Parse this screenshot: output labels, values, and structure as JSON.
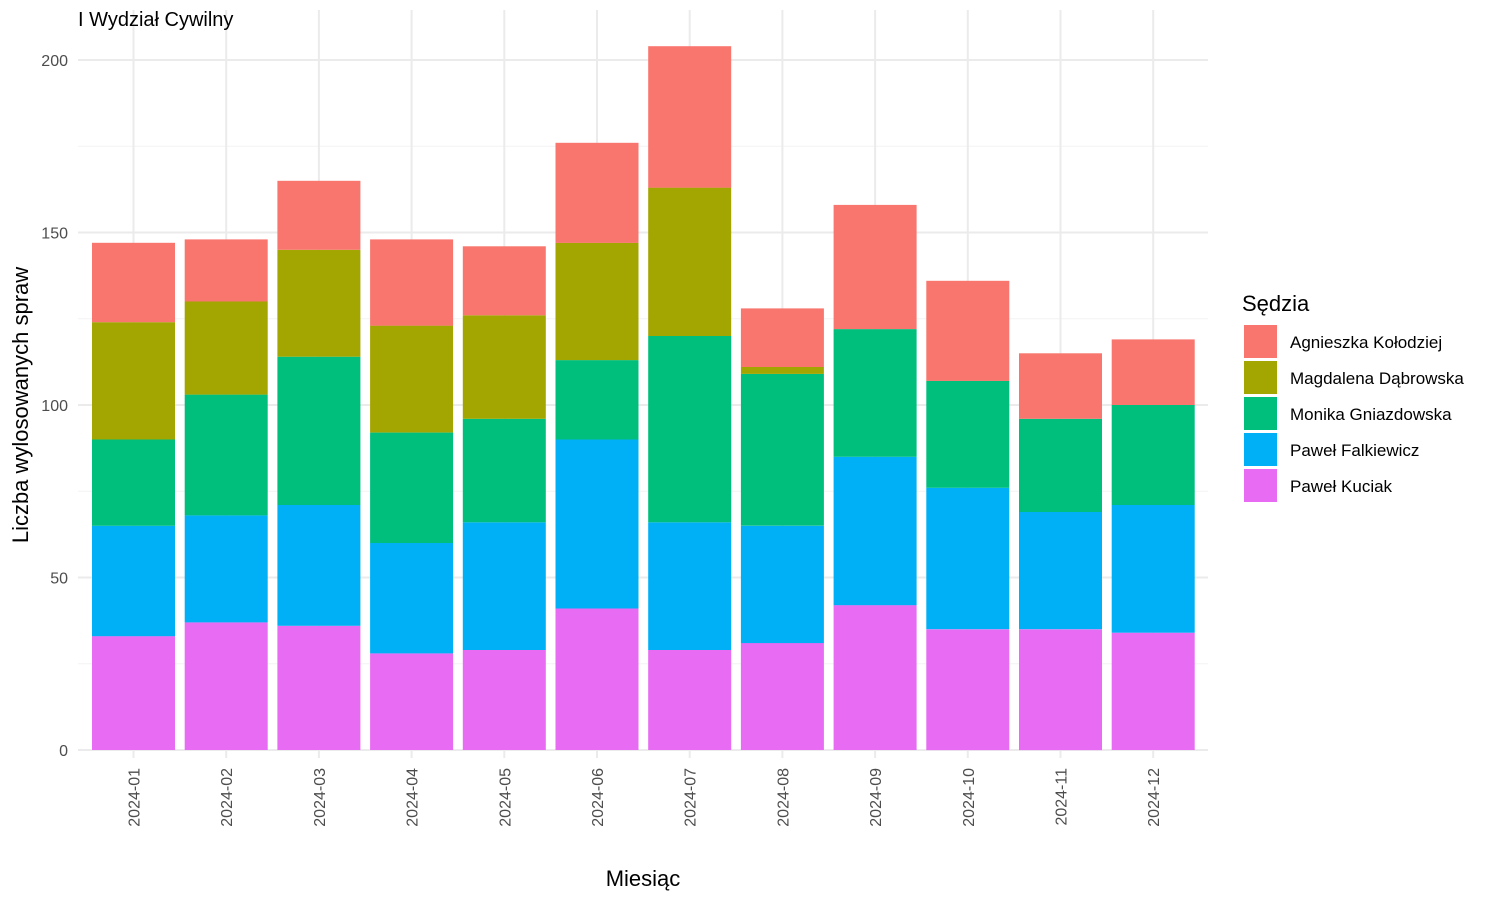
{
  "chart_data": {
    "type": "bar",
    "stacked": true,
    "title": "I Wydział Cywilny",
    "xlabel": "Miesiąc",
    "ylabel": "Liczba wylosowanych spraw",
    "ylim": [
      0,
      210
    ],
    "yticks": [
      0,
      50,
      100,
      150,
      200
    ],
    "grid": true,
    "legend_position": "right",
    "legend_title": "Sędzia",
    "categories": [
      "2024-01",
      "2024-02",
      "2024-03",
      "2024-04",
      "2024-05",
      "2024-06",
      "2024-07",
      "2024-08",
      "2024-09",
      "2024-10",
      "2024-11",
      "2024-12"
    ],
    "series": [
      {
        "name": "Paweł Kuciak",
        "color": "#E76BF3",
        "values": [
          33,
          37,
          36,
          28,
          29,
          41,
          29,
          31,
          42,
          35,
          35,
          34
        ]
      },
      {
        "name": "Paweł Falkiewicz",
        "color": "#00B0F6",
        "values": [
          32,
          31,
          35,
          32,
          37,
          49,
          37,
          34,
          43,
          41,
          34,
          37
        ]
      },
      {
        "name": "Monika Gniazdowska",
        "color": "#00BF7D",
        "values": [
          25,
          35,
          43,
          32,
          30,
          23,
          54,
          44,
          37,
          31,
          27,
          29
        ]
      },
      {
        "name": "Magdalena Dąbrowska",
        "color": "#A3A500",
        "values": [
          34,
          27,
          31,
          31,
          30,
          34,
          43,
          2,
          0,
          0,
          0,
          0
        ]
      },
      {
        "name": "Agnieszka Kołodziej",
        "color": "#F8766D",
        "values": [
          23,
          18,
          20,
          25,
          20,
          29,
          41,
          17,
          36,
          29,
          19,
          19
        ]
      }
    ],
    "legend_order": [
      "Agnieszka Kołodziej",
      "Magdalena Dąbrowska",
      "Monika Gniazdowska",
      "Paweł Falkiewicz",
      "Paweł Kuciak"
    ]
  }
}
